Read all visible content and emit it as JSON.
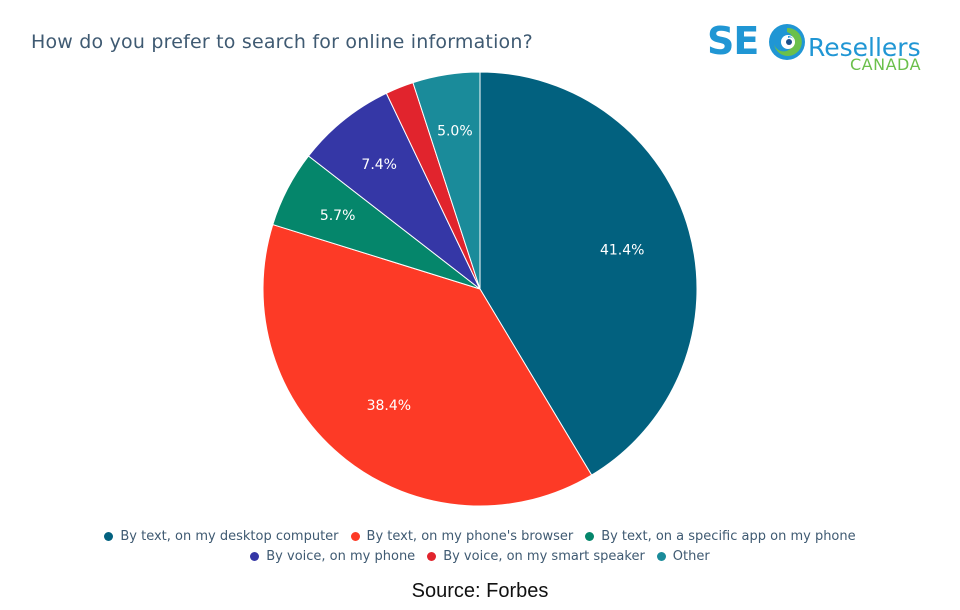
{
  "title": "How do you prefer to search for online information?",
  "logo": {
    "seo": "SE",
    "resellers": "Resellers",
    "canada": "CANADA"
  },
  "source": "Source: Forbes",
  "chart_data": {
    "type": "pie",
    "title": "How do you prefer to search for online information?",
    "labels": [
      "By text, on my desktop computer",
      "By text, on my phone's browser",
      "By text, on a specific app on my phone",
      "By voice, on my phone",
      "By voice, on my smart speaker",
      "Other"
    ],
    "values": [
      41.4,
      38.4,
      5.7,
      7.4,
      2.1,
      5.0
    ],
    "value_labels": [
      "41.4%",
      "38.4%",
      "5.7%",
      "7.4%",
      "",
      "5.0%"
    ],
    "colors": [
      "#02617f",
      "#fd3a26",
      "#05866b",
      "#3537a6",
      "#e1242d",
      "#1a8b9a"
    ],
    "legend_position": "bottom"
  }
}
